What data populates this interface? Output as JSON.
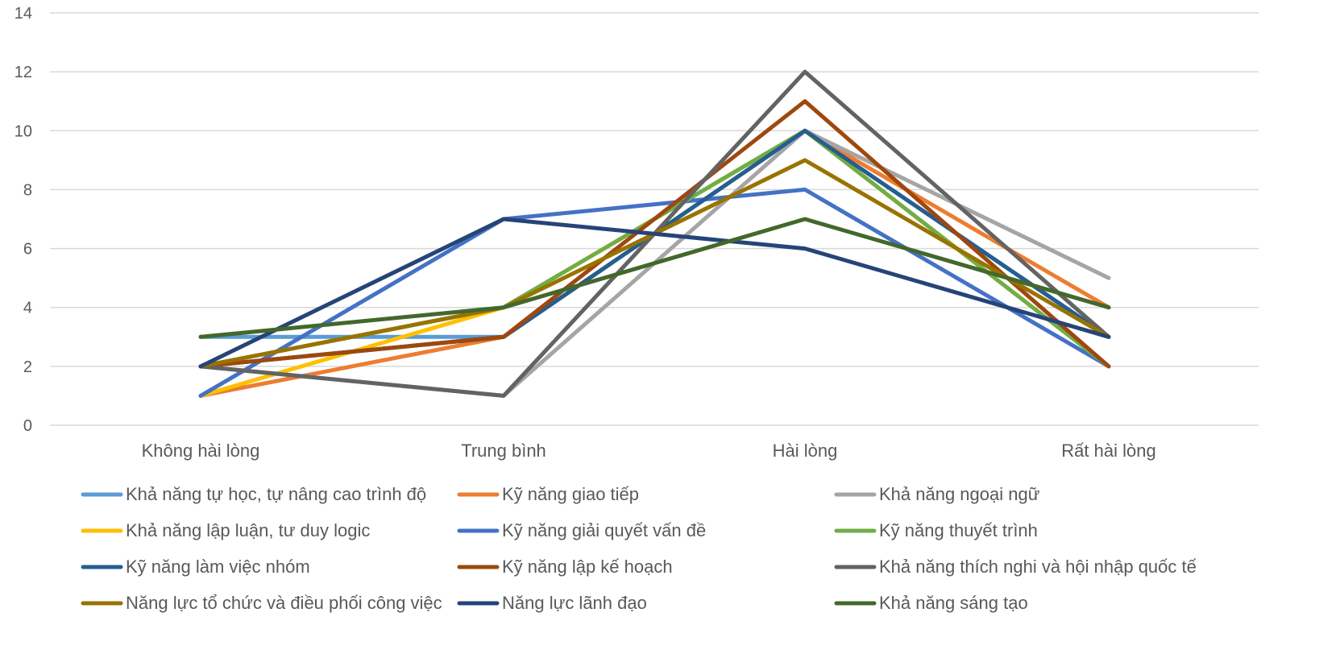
{
  "chart_data": {
    "type": "line",
    "categories": [
      "Không hài lòng",
      "Trung bình",
      "Hài lòng",
      "Rất hài lòng"
    ],
    "ylim": [
      0,
      14
    ],
    "yticks": [
      0,
      2,
      4,
      6,
      8,
      10,
      12,
      14
    ],
    "grid": true,
    "legend_position": "bottom",
    "series": [
      {
        "name": "Khả năng tự học, tự nâng cao trình độ",
        "color": "#5B9BD5",
        "values": [
          3,
          3,
          10,
          3
        ]
      },
      {
        "name": "Kỹ năng giao tiếp",
        "color": "#ED7D31",
        "values": [
          1,
          3,
          10,
          4
        ]
      },
      {
        "name": "Khả năng ngoại ngữ",
        "color": "#A5A5A5",
        "values": [
          2,
          1,
          10,
          5
        ]
      },
      {
        "name": "Khả năng lập luận, tư duy logic",
        "color": "#FFC000",
        "values": [
          1,
          4,
          10,
          2
        ]
      },
      {
        "name": "Kỹ năng giải quyết vấn đề",
        "color": "#4472C4",
        "values": [
          1,
          7,
          8,
          2
        ]
      },
      {
        "name": "Kỹ năng thuyết trình",
        "color": "#70AD47",
        "values": [
          2,
          4,
          10,
          2
        ]
      },
      {
        "name": "Kỹ năng làm việc nhóm",
        "color": "#255E91",
        "values": [
          2,
          3,
          10,
          3
        ]
      },
      {
        "name": "Kỹ năng lập kế hoạch",
        "color": "#9E480E",
        "values": [
          2,
          3,
          11,
          2
        ]
      },
      {
        "name": "Khả năng thích nghi và hội nhập quốc tế",
        "color": "#636363",
        "values": [
          2,
          1,
          12,
          3
        ]
      },
      {
        "name": "Năng lực tổ chức và điều phối công việc",
        "color": "#997300",
        "values": [
          2,
          4,
          9,
          3
        ]
      },
      {
        "name": "Năng lực lãnh đạo",
        "color": "#264478",
        "values": [
          2,
          7,
          6,
          3
        ]
      },
      {
        "name": "Khả năng sáng tạo",
        "color": "#43682B",
        "values": [
          3,
          4,
          7,
          4
        ]
      }
    ]
  }
}
